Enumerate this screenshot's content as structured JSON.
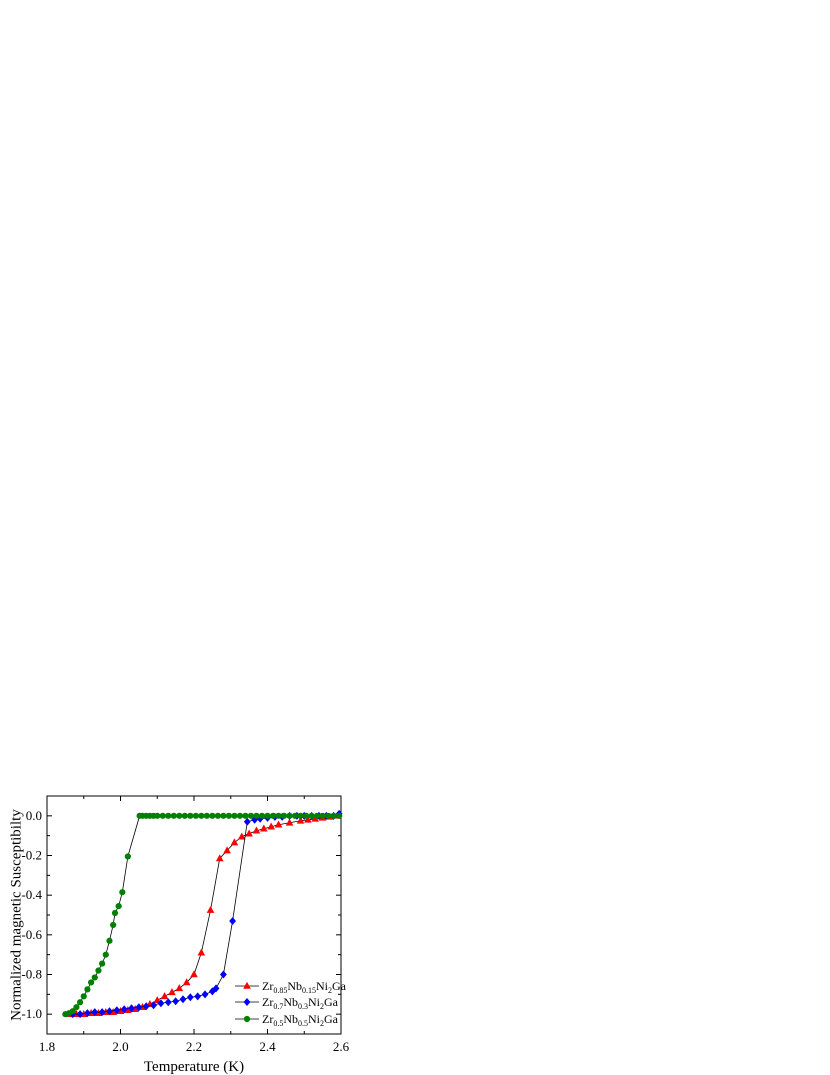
{
  "chart_data": {
    "type": "scatter",
    "title": "",
    "xlabel": "Temperature (K)",
    "ylabel": "Normalized magnetic Susceptibilty",
    "xlim": [
      1.8,
      2.6
    ],
    "ylim": [
      -1.1,
      0.1
    ],
    "x_ticks": [
      "1.8",
      "2.0",
      "2.2",
      "2.4",
      "2.6"
    ],
    "y_ticks": [
      "0.0",
      "-0.2",
      "-0.4",
      "-0.6",
      "-0.8",
      "-1.0"
    ],
    "x_tick_values": [
      1.8,
      2.0,
      2.2,
      2.4,
      2.6
    ],
    "y_tick_values": [
      0.0,
      -0.2,
      -0.4,
      -0.6,
      -0.8,
      -1.0
    ],
    "grid": false,
    "legend_placement": "bottom-right",
    "series": [
      {
        "name": "Zr0.85Nb0.15Ni2Ga",
        "legend": {
          "base": [
            [
              "Zr",
              ""
            ],
            [
              "0.85",
              "sub"
            ],
            [
              "Nb",
              ""
            ],
            [
              "0.15",
              "sub"
            ],
            [
              "Ni",
              ""
            ],
            [
              "2",
              "sub"
            ],
            [
              "Ga",
              ""
            ]
          ]
        },
        "color": "#ff0000",
        "marker": "triangle",
        "points": [
          [
            1.86,
            -1.0
          ],
          [
            1.88,
            -1.0
          ],
          [
            1.9,
            -1.0
          ],
          [
            1.92,
            -0.995
          ],
          [
            1.94,
            -0.995
          ],
          [
            1.96,
            -0.99
          ],
          [
            1.98,
            -0.99
          ],
          [
            2.0,
            -0.985
          ],
          [
            2.02,
            -0.98
          ],
          [
            2.04,
            -0.975
          ],
          [
            2.06,
            -0.965
          ],
          [
            2.08,
            -0.95
          ],
          [
            2.1,
            -0.93
          ],
          [
            2.12,
            -0.91
          ],
          [
            2.14,
            -0.89
          ],
          [
            2.16,
            -0.87
          ],
          [
            2.18,
            -0.84
          ],
          [
            2.2,
            -0.8
          ],
          [
            2.22,
            -0.69
          ],
          [
            2.245,
            -0.475
          ],
          [
            2.27,
            -0.215
          ],
          [
            2.29,
            -0.175
          ],
          [
            2.31,
            -0.135
          ],
          [
            2.33,
            -0.105
          ],
          [
            2.35,
            -0.09
          ],
          [
            2.37,
            -0.075
          ],
          [
            2.39,
            -0.065
          ],
          [
            2.41,
            -0.055
          ],
          [
            2.43,
            -0.045
          ],
          [
            2.46,
            -0.035
          ],
          [
            2.49,
            -0.025
          ],
          [
            2.51,
            -0.02
          ],
          [
            2.53,
            -0.015
          ],
          [
            2.55,
            -0.01
          ],
          [
            2.57,
            -0.005
          ],
          [
            2.59,
            0.0
          ]
        ]
      },
      {
        "name": "Zr0.7Nb0.3Ni2Ga",
        "legend": {
          "base": [
            [
              "Zr",
              ""
            ],
            [
              "0.7",
              "sub"
            ],
            [
              "Nb",
              ""
            ],
            [
              "0.3",
              "sub"
            ],
            [
              "Ni",
              ""
            ],
            [
              "2",
              "sub"
            ],
            [
              "Ga",
              ""
            ]
          ]
        },
        "color": "#0000ff",
        "marker": "diamond",
        "points": [
          [
            1.87,
            -1.0
          ],
          [
            1.89,
            -1.0
          ],
          [
            1.91,
            -0.995
          ],
          [
            1.93,
            -0.99
          ],
          [
            1.95,
            -0.99
          ],
          [
            1.97,
            -0.985
          ],
          [
            1.99,
            -0.98
          ],
          [
            2.01,
            -0.975
          ],
          [
            2.03,
            -0.97
          ],
          [
            2.05,
            -0.965
          ],
          [
            2.07,
            -0.96
          ],
          [
            2.09,
            -0.955
          ],
          [
            2.11,
            -0.945
          ],
          [
            2.13,
            -0.94
          ],
          [
            2.15,
            -0.935
          ],
          [
            2.17,
            -0.925
          ],
          [
            2.19,
            -0.915
          ],
          [
            2.21,
            -0.91
          ],
          [
            2.23,
            -0.9
          ],
          [
            2.25,
            -0.885
          ],
          [
            2.26,
            -0.87
          ],
          [
            2.28,
            -0.8
          ],
          [
            2.305,
            -0.53
          ],
          [
            2.345,
            -0.03
          ],
          [
            2.365,
            -0.02
          ],
          [
            2.38,
            -0.015
          ],
          [
            2.4,
            -0.01
          ],
          [
            2.42,
            -0.005
          ],
          [
            2.44,
            -0.005
          ],
          [
            2.46,
            0.0
          ],
          [
            2.48,
            0.0
          ],
          [
            2.5,
            0.0
          ],
          [
            2.52,
            0.0
          ],
          [
            2.54,
            0.0
          ],
          [
            2.56,
            0.0
          ],
          [
            2.58,
            0.0
          ],
          [
            2.595,
            0.01
          ]
        ]
      },
      {
        "name": "Zr0.5Nb0.5Ni2Ga",
        "legend": {
          "base": [
            [
              "Zr",
              ""
            ],
            [
              "0.5",
              "sub"
            ],
            [
              "Nb",
              ""
            ],
            [
              "0.5",
              "sub"
            ],
            [
              "Ni",
              ""
            ],
            [
              "2",
              "sub"
            ],
            [
              "Ga",
              ""
            ]
          ]
        },
        "color": "#008000",
        "marker": "circle",
        "points": [
          [
            1.85,
            -1.0
          ],
          [
            1.86,
            -0.995
          ],
          [
            1.87,
            -0.985
          ],
          [
            1.88,
            -0.965
          ],
          [
            1.89,
            -0.94
          ],
          [
            1.9,
            -0.91
          ],
          [
            1.91,
            -0.875
          ],
          [
            1.92,
            -0.84
          ],
          [
            1.93,
            -0.815
          ],
          [
            1.94,
            -0.78
          ],
          [
            1.95,
            -0.745
          ],
          [
            1.96,
            -0.7
          ],
          [
            1.97,
            -0.63
          ],
          [
            1.98,
            -0.55
          ],
          [
            1.985,
            -0.49
          ],
          [
            1.995,
            -0.455
          ],
          [
            2.005,
            -0.385
          ],
          [
            2.02,
            -0.205
          ],
          [
            2.052,
            0.0
          ],
          [
            2.06,
            0.0
          ],
          [
            2.07,
            0.0
          ],
          [
            2.08,
            0.0
          ],
          [
            2.09,
            0.0
          ],
          [
            2.1,
            0.0
          ],
          [
            2.115,
            0.0
          ],
          [
            2.13,
            0.0
          ],
          [
            2.145,
            0.0
          ],
          [
            2.16,
            0.0
          ],
          [
            2.175,
            0.0
          ],
          [
            2.19,
            0.0
          ],
          [
            2.205,
            0.0
          ],
          [
            2.22,
            0.0
          ],
          [
            2.235,
            0.0
          ],
          [
            2.25,
            0.0
          ],
          [
            2.265,
            0.0
          ],
          [
            2.28,
            0.0
          ],
          [
            2.295,
            0.0
          ],
          [
            2.31,
            0.0
          ],
          [
            2.325,
            0.0
          ],
          [
            2.34,
            0.0
          ],
          [
            2.355,
            0.0
          ],
          [
            2.37,
            0.0
          ],
          [
            2.385,
            0.0
          ],
          [
            2.4,
            0.0
          ],
          [
            2.415,
            0.0
          ],
          [
            2.43,
            0.0
          ],
          [
            2.445,
            0.0
          ],
          [
            2.46,
            0.0
          ],
          [
            2.475,
            0.0
          ],
          [
            2.49,
            0.0
          ],
          [
            2.505,
            0.0
          ],
          [
            2.52,
            0.0
          ],
          [
            2.535,
            0.0
          ],
          [
            2.55,
            0.0
          ],
          [
            2.565,
            0.0
          ],
          [
            2.58,
            0.0
          ],
          [
            2.595,
            0.0
          ]
        ]
      }
    ]
  }
}
